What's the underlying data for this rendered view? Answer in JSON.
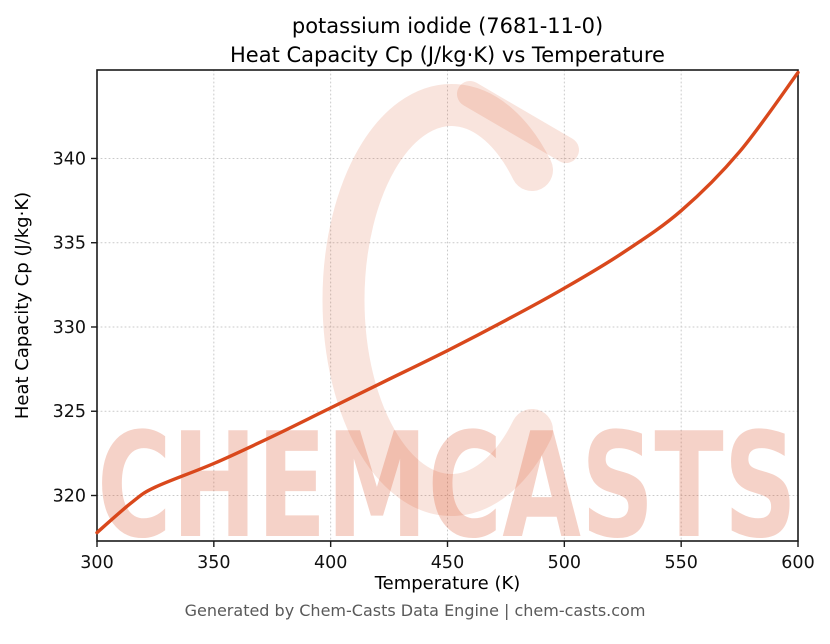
{
  "footer": "Generated by Chem-Casts Data Engine | chem-casts.com",
  "watermark": {
    "text": "CHEMCASTS",
    "color": "#d9481c",
    "logo_opacity": 0.15,
    "text_opacity": 0.24
  },
  "chart_data": {
    "type": "line",
    "title": "potassium iodide (7681-11-0)",
    "subtitle": "Heat Capacity Cp (J/kg·K) vs Temperature",
    "xlabel": "Temperature (K)",
    "ylabel": "Heat Capacity Cp (J/kg·K)",
    "x": [
      300,
      315,
      325,
      350,
      375,
      400,
      425,
      450,
      475,
      500,
      525,
      550,
      575,
      600
    ],
    "y": [
      317.8,
      319.6,
      320.5,
      321.9,
      323.5,
      325.2,
      326.9,
      328.6,
      330.4,
      332.3,
      334.4,
      336.9,
      340.4,
      345.1
    ],
    "xlim": [
      300,
      600
    ],
    "ylim": [
      317.3,
      345.25
    ],
    "xticks": [
      300,
      350,
      400,
      450,
      500,
      550,
      600
    ],
    "yticks": [
      320,
      325,
      330,
      335,
      340
    ],
    "grid": true,
    "legend": false,
    "line_color": "#d9481c",
    "line_width": 3.4
  }
}
